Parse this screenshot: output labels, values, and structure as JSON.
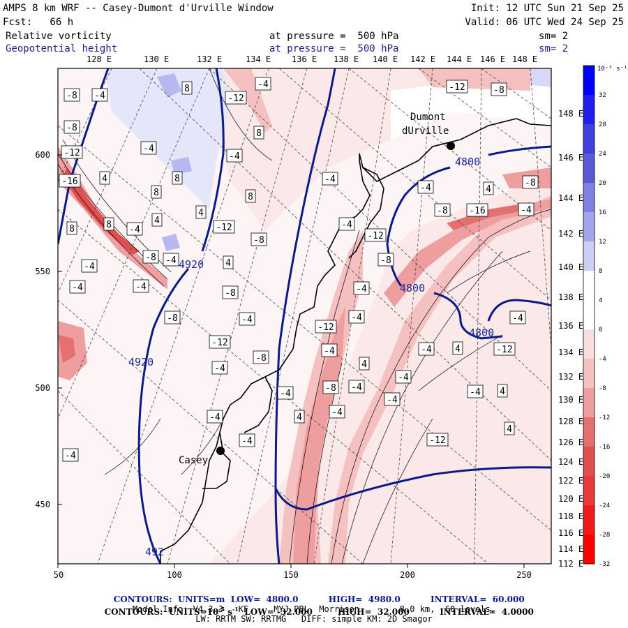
{
  "header": {
    "title": "AMPS 8 km WRF -- Casey-Dumont d'Urville Window",
    "fcst": "Fcst:   66 h",
    "init": "Init: 12 UTC Sun 21 Sep 25",
    "valid": "Valid: 06 UTC Wed 24 Sep 25",
    "field1": "Relative vorticity",
    "field1_level": "at pressure =  500 hPa",
    "field1_sm": "sm= 2",
    "field2": "Geopotential height",
    "field2_level": "at pressure =  500 hPa",
    "field2_sm": "sm= 2"
  },
  "top_lon_labels": [
    "128 E",
    "130 E",
    "132 E",
    "134 E",
    "136 E",
    "138 E",
    "140 E",
    "142 E",
    "144 E",
    "146 E",
    "148 E"
  ],
  "right_lon_labels": [
    "148 E",
    "146 E",
    "144 E",
    "142 E",
    "140 E",
    "138 E",
    "136 E",
    "134 E",
    "132 E",
    "130 E",
    "128 E",
    "126 E",
    "124 E",
    "122 E",
    "120 E",
    "118 E",
    "116 E",
    "114 E",
    "112 E"
  ],
  "left_axis": [
    "600",
    "550",
    "500",
    "450"
  ],
  "bottom_axis": [
    "50",
    "100",
    "150",
    "200",
    "250"
  ],
  "stations": [
    {
      "name": "Dumont",
      "name2": "dUrville"
    },
    {
      "name": "Casey"
    }
  ],
  "height_contour_labels": [
    "4800",
    "4800",
    "4800",
    "4920",
    "4920",
    "492"
  ],
  "vort_labels": [
    "-8",
    "-4",
    "8",
    "-12",
    "-4",
    "-12",
    "-8",
    "-8",
    "-4",
    "8",
    "-12",
    "-4",
    "-4",
    "-16",
    "4",
    "8",
    "8",
    "8",
    "-4",
    "4",
    "-8",
    "4",
    "-8",
    "-16",
    "8",
    "-4",
    "8",
    "-4",
    "4",
    "-12",
    "-4",
    "-8",
    "-12",
    "-8",
    "-8",
    "-4",
    "4",
    "-4",
    "-4",
    "-4",
    "-4",
    "-8",
    "-8",
    "-4",
    "-4",
    "-12",
    "-4",
    "-4",
    "-12",
    "-4",
    "4",
    "-12",
    "-8",
    "-4",
    "4",
    "-4",
    "-4",
    "-8",
    "-4",
    "-4",
    "-4",
    "4",
    "-4",
    "4",
    "-4",
    "4",
    "-12",
    "-4",
    "-4"
  ],
  "colorbar": {
    "unit_label": "10⁻⁵ s⁻¹",
    "ticks": [
      "32",
      "28",
      "24",
      "20",
      "16",
      "12",
      "8",
      "4",
      "0",
      "-4",
      "-8",
      "-12",
      "-16",
      "-20",
      "-24",
      "-28",
      "-32"
    ],
    "colors": [
      "#0000ff",
      "#2020ee",
      "#4040dd",
      "#5a5ad4",
      "#8080e0",
      "#a4a4ec",
      "#cdcdf5",
      "#ffffff",
      "#ffffff",
      "#f8dede",
      "#f4c0c0",
      "#ee9e9e",
      "#e47070",
      "#e05050",
      "#e83a3a",
      "#f01c1c",
      "#ff0000"
    ]
  },
  "footer": {
    "line1_a": "CONTOURS:  UNITS=m  LOW=  4800.0",
    "line1_b": "HIGH=  4980.0",
    "line1_c": "INTERVAL=  60.000",
    "line2_a": "CONTOURS:  UNITS=10",
    "line2_b": "-5",
    "line2_c": " s",
    "line2_d": "-1",
    "line2_e": "  LOW= -32.000",
    "line2_f": "HIGH=  32.000",
    "line2_g": "INTERVAL=  4.0000",
    "line3": "Model Info: V4.3.3   KF     MYJ PBL  Morrison        8.0 km,  60 levels,",
    "line4": "LW: RRTM SW: RRTMG   DIFF: simple KM: 2D Smagor"
  }
}
